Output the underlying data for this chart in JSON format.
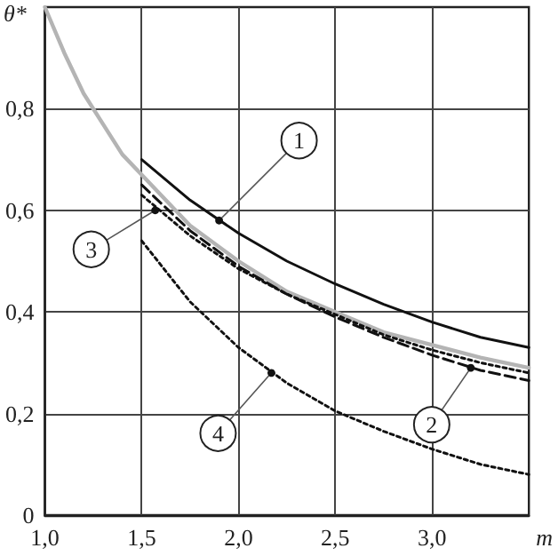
{
  "chart_data": {
    "type": "line",
    "xlabel": "m",
    "ylabel": "θ*",
    "xlim": [
      1,
      3.5
    ],
    "ylim": [
      0,
      1
    ],
    "xticks": [
      {
        "value": 1,
        "label": "1,0"
      },
      {
        "value": 1.5,
        "label": "1,5"
      },
      {
        "value": 2,
        "label": "2,0"
      },
      {
        "value": 2.5,
        "label": "2,5"
      },
      {
        "value": 3,
        "label": "3,0"
      }
    ],
    "yticks": [
      0,
      {
        "value": 0.2,
        "label": "0,2"
      },
      {
        "value": 0.4,
        "label": "0,4"
      },
      {
        "value": 0.6,
        "label": "0,6"
      },
      {
        "value": 0.8,
        "label": "0,8"
      }
    ],
    "grid": true,
    "marker": "none",
    "series": [
      {
        "color": "#b4b4b4",
        "line_style": "solid",
        "x": [
          1,
          1.1,
          1.2,
          1.3,
          1.4,
          1.5,
          1.75,
          2,
          2.25,
          2.5,
          2.75,
          3,
          3.25,
          3.5
        ],
        "values": [
          1,
          0.91,
          0.83,
          0.77,
          0.71,
          0.67,
          0.57,
          0.5,
          0.44,
          0.4,
          0.36,
          0.335,
          0.31,
          0.29
        ]
      },
      {
        "color": "#111111",
        "line_style": "solid",
        "x": [
          1.5,
          1.75,
          2,
          2.25,
          2.5,
          2.75,
          3,
          3.25,
          3.5
        ],
        "values": [
          0.7,
          0.62,
          0.555,
          0.5,
          0.455,
          0.415,
          0.38,
          0.35,
          0.33
        ]
      },
      {
        "color": "#111111",
        "line_style": "dashed",
        "x": [
          1.5,
          1.75,
          2,
          2.25,
          2.5,
          2.75,
          3,
          3.25,
          3.5
        ],
        "values": [
          0.65,
          0.56,
          0.49,
          0.435,
          0.39,
          0.35,
          0.315,
          0.285,
          0.265
        ]
      },
      {
        "color": "#111111",
        "line_style": "dotted",
        "x": [
          1.5,
          1.75,
          2,
          2.25,
          2.5,
          2.75,
          3,
          3.25,
          3.5
        ],
        "values": [
          0.63,
          0.55,
          0.485,
          0.435,
          0.395,
          0.355,
          0.325,
          0.3,
          0.28
        ]
      },
      {
        "color": "#111111",
        "line_style": "dotted",
        "x": [
          1.5,
          1.75,
          2,
          2.25,
          2.5,
          2.75,
          3,
          3.25,
          3.5
        ],
        "values": [
          0.54,
          0.42,
          0.33,
          0.26,
          0.205,
          0.165,
          0.13,
          0.1,
          0.08
        ]
      }
    ],
    "annotations": [
      {
        "text": "1",
        "x": 1.9,
        "y": 0.58
      },
      {
        "text": "2",
        "x": 3.2,
        "y": 0.29
      },
      {
        "text": "3",
        "x": 1.57,
        "y": 0.6
      },
      {
        "text": "4",
        "x": 2.17,
        "y": 0.28
      }
    ]
  }
}
